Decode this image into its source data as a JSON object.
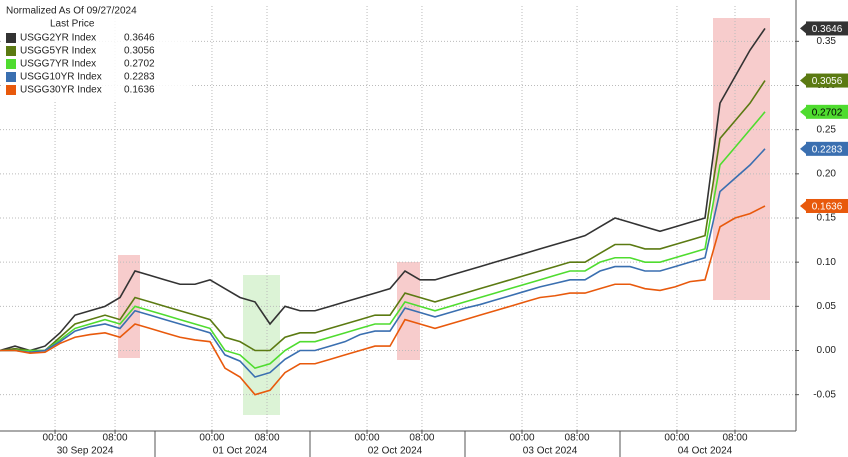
{
  "chart_data": {
    "type": "line",
    "title": "Normalized As Of 09/27/2024",
    "legend_header": "Last Price",
    "x": [
      0,
      1,
      2,
      3,
      4,
      5,
      6,
      7,
      8,
      9,
      10,
      11,
      12,
      13,
      14,
      15,
      16,
      17,
      18,
      19,
      20,
      21,
      22,
      23,
      24,
      25,
      26,
      27,
      28,
      29,
      30,
      31,
      32,
      33,
      34,
      35,
      36,
      37,
      38,
      39,
      40,
      41,
      42,
      43,
      44,
      45,
      46,
      47,
      48,
      49,
      50,
      51
    ],
    "xlim": [
      0,
      53
    ],
    "xticks": [
      {
        "value": 3.67,
        "label": "00:00"
      },
      {
        "value": 7.67,
        "label": "08:00"
      },
      {
        "value": 14.13,
        "label": "00:00"
      },
      {
        "value": 17.8,
        "label": "08:00"
      },
      {
        "value": 24.47,
        "label": "00:00"
      },
      {
        "value": 28.13,
        "label": "08:00"
      },
      {
        "value": 34.8,
        "label": "00:00"
      },
      {
        "value": 38.47,
        "label": "08:00"
      },
      {
        "value": 45.13,
        "label": "00:00"
      },
      {
        "value": 49,
        "label": "08:00"
      }
    ],
    "xdates": [
      {
        "value": 5.67,
        "label": "30 Sep 2024"
      },
      {
        "value": 16,
        "label": "01 Oct 2024"
      },
      {
        "value": 26.33,
        "label": "02 Oct 2024"
      },
      {
        "value": 36.67,
        "label": "03 Oct 2024"
      },
      {
        "value": 47,
        "label": "04 Oct 2024"
      }
    ],
    "ylim": [
      -0.09,
      0.39
    ],
    "yticks": [
      -0.05,
      {
        "value": 0,
        "label": "0.00"
      },
      0.05,
      {
        "value": 0.1,
        "label": "0.10"
      },
      0.15,
      {
        "value": 0.2,
        "label": "0.20"
      },
      0.25,
      {
        "value": 0.3,
        "label": "0.30"
      },
      0.35
    ],
    "grid": true,
    "series": [
      {
        "name": "USGG2YR Index",
        "color": "#333333",
        "values": [
          0,
          0.005,
          0,
          0.005,
          0.02,
          0.04,
          0.045,
          0.05,
          0.06,
          0.09,
          0.085,
          0.08,
          0.075,
          0.075,
          0.08,
          0.07,
          0.06,
          0.055,
          0.03,
          0.05,
          0.045,
          0.045,
          0.05,
          0.055,
          0.06,
          0.065,
          0.07,
          0.09,
          0.08,
          0.08,
          0.085,
          0.09,
          0.095,
          0.1,
          0.105,
          0.11,
          0.115,
          0.12,
          0.125,
          0.13,
          0.14,
          0.15,
          0.145,
          0.14,
          0.135,
          0.14,
          0.145,
          0.15,
          0.28,
          0.31,
          0.34,
          0.3646
        ]
      },
      {
        "name": "USGG5YR Index",
        "color": "#5b7a12",
        "values": [
          0,
          0.002,
          0,
          0,
          0.015,
          0.03,
          0.035,
          0.04,
          0.035,
          0.06,
          0.055,
          0.05,
          0.045,
          0.04,
          0.035,
          0.015,
          0.01,
          0,
          0,
          0.015,
          0.02,
          0.02,
          0.025,
          0.03,
          0.035,
          0.04,
          0.04,
          0.065,
          0.06,
          0.055,
          0.06,
          0.065,
          0.07,
          0.075,
          0.08,
          0.085,
          0.09,
          0.095,
          0.1,
          0.1,
          0.11,
          0.12,
          0.12,
          0.115,
          0.115,
          0.12,
          0.125,
          0.13,
          0.24,
          0.26,
          0.28,
          0.3056
        ]
      },
      {
        "name": "USGG7YR Index",
        "color": "#4fdc2f",
        "values": [
          0,
          0,
          0,
          0,
          0.012,
          0.025,
          0.03,
          0.035,
          0.03,
          0.05,
          0.045,
          0.04,
          0.035,
          0.03,
          0.025,
          0,
          -0.005,
          -0.02,
          -0.015,
          0,
          0.01,
          0.01,
          0.015,
          0.02,
          0.025,
          0.03,
          0.03,
          0.055,
          0.05,
          0.045,
          0.05,
          0.055,
          0.06,
          0.065,
          0.07,
          0.075,
          0.08,
          0.085,
          0.09,
          0.09,
          0.1,
          0.105,
          0.105,
          0.1,
          0.1,
          0.105,
          0.11,
          0.115,
          0.21,
          0.23,
          0.25,
          0.2702
        ]
      },
      {
        "name": "USGG10YR Index",
        "color": "#3a6fb0",
        "values": [
          0,
          0,
          -0.002,
          0,
          0.01,
          0.022,
          0.027,
          0.03,
          0.025,
          0.045,
          0.04,
          0.035,
          0.03,
          0.025,
          0.02,
          -0.005,
          -0.012,
          -0.03,
          -0.025,
          -0.01,
          0,
          0,
          0.005,
          0.01,
          0.018,
          0.022,
          0.022,
          0.048,
          0.043,
          0.038,
          0.043,
          0.048,
          0.052,
          0.057,
          0.062,
          0.067,
          0.072,
          0.076,
          0.08,
          0.08,
          0.09,
          0.095,
          0.095,
          0.09,
          0.09,
          0.095,
          0.1,
          0.105,
          0.18,
          0.195,
          0.21,
          0.2283
        ]
      },
      {
        "name": "USGG30YR Index",
        "color": "#e8590c",
        "values": [
          0,
          0,
          -0.003,
          -0.002,
          0.008,
          0.015,
          0.018,
          0.02,
          0.015,
          0.03,
          0.025,
          0.02,
          0.015,
          0.012,
          0.01,
          -0.02,
          -0.03,
          -0.05,
          -0.045,
          -0.025,
          -0.015,
          -0.015,
          -0.01,
          -0.005,
          0,
          0.005,
          0.005,
          0.035,
          0.03,
          0.025,
          0.03,
          0.035,
          0.04,
          0.045,
          0.05,
          0.055,
          0.06,
          0.062,
          0.065,
          0.065,
          0.07,
          0.075,
          0.075,
          0.07,
          0.068,
          0.072,
          0.078,
          0.08,
          0.14,
          0.15,
          0.155,
          0.1636
        ]
      }
    ]
  }
}
